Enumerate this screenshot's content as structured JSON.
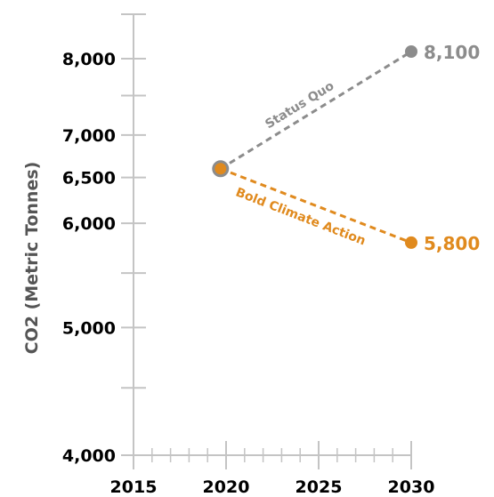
{
  "chart_data": {
    "type": "line",
    "title": "",
    "xlabel": "",
    "ylabel": "CO2 (Metric Tonnes)",
    "xlim": [
      2015,
      2030
    ],
    "ylim": [
      4000,
      8500
    ],
    "x_ticks": [
      2015,
      2020,
      2025,
      2030
    ],
    "x_tick_labels": [
      "2015",
      "2020",
      "2025",
      "2030"
    ],
    "y_ticks": [
      4000,
      5000,
      6000,
      6500,
      7000,
      8000
    ],
    "y_tick_labels": [
      "4,000",
      "5,000",
      "6,000",
      "6,500",
      "7,000",
      "8,000"
    ],
    "y_scale": "log",
    "grid": false,
    "series": [
      {
        "name": "Status Quo",
        "color": "#8c8c8c",
        "x": [
          2019.7,
          2030
        ],
        "y": [
          6600,
          8100
        ],
        "end_label": "8,100",
        "style": "dashed"
      },
      {
        "name": "Bold Climate Action",
        "color": "#e08a1e",
        "x": [
          2019.7,
          2030
        ],
        "y": [
          6600,
          5800
        ],
        "end_label": "5,800",
        "style": "dashed"
      }
    ]
  }
}
